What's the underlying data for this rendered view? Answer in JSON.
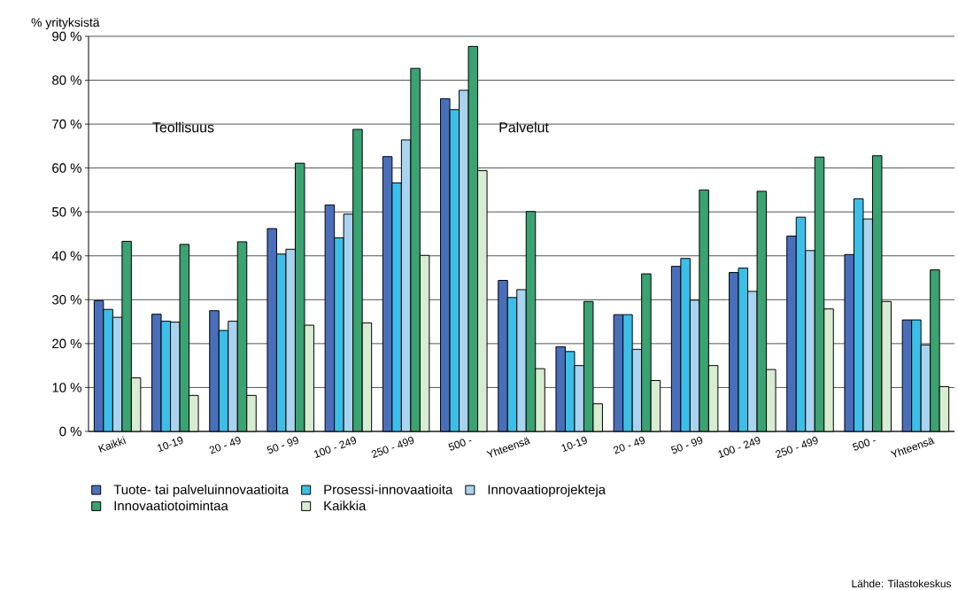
{
  "chart_data": {
    "type": "bar",
    "ylabel": "% yrityksistä",
    "categories": [
      "Kaikki",
      "10-19",
      "20 - 49",
      "50 - 99",
      "100 - 249",
      "250 - 499",
      "500 -",
      "Yhteensä",
      "10-19",
      "20 - 49",
      "50 - 99",
      "100 - 249",
      "250 - 499",
      "500 -",
      "Yhteensä"
    ],
    "series": [
      {
        "name": "Tuote- tai palveluinnovaatioita",
        "color": "#4a6fba",
        "values": [
          29.8,
          26.7,
          27.5,
          46.2,
          51.6,
          62.6,
          75.8,
          34.4,
          19.3,
          26.6,
          37.6,
          36.2,
          44.5,
          40.3,
          25.4
        ]
      },
      {
        "name": "Prosessi-innovaatioita",
        "color": "#3bbfe8",
        "values": [
          27.8,
          25.1,
          23.0,
          40.4,
          44.1,
          56.6,
          73.3,
          30.5,
          18.2,
          26.6,
          39.4,
          37.2,
          48.8,
          53.0,
          25.4
        ]
      },
      {
        "name": "Innovaatioprojekteja",
        "color": "#a9d3ee",
        "values": [
          26.0,
          24.9,
          25.1,
          41.5,
          49.5,
          66.4,
          77.7,
          32.3,
          15.0,
          18.7,
          29.9,
          31.9,
          41.2,
          48.4,
          19.7
        ]
      },
      {
        "name": "Innovaatiotoimintaa",
        "color": "#3ba271",
        "values": [
          43.3,
          42.6,
          43.2,
          61.1,
          68.8,
          82.7,
          87.7,
          50.1,
          29.6,
          35.9,
          55.0,
          54.7,
          62.5,
          62.8,
          36.8
        ]
      },
      {
        "name": "Kaikkia",
        "color": "#d7ecd0",
        "values": [
          12.2,
          8.2,
          8.2,
          24.2,
          24.7,
          40.1,
          59.4,
          14.3,
          6.3,
          11.6,
          15.0,
          14.1,
          27.9,
          29.6,
          10.2
        ]
      }
    ],
    "ylim": [
      0,
      90
    ],
    "yticks": [
      {
        "value": 0,
        "label": "0 %"
      },
      {
        "value": 10,
        "label": "10 %"
      },
      {
        "value": 20,
        "label": "20 %"
      },
      {
        "value": 30,
        "label": "30 %"
      },
      {
        "value": 40,
        "label": "40 %"
      },
      {
        "value": 50,
        "label": "50 %"
      },
      {
        "value": 60,
        "label": "60 %"
      },
      {
        "value": 70,
        "label": "70 %"
      },
      {
        "value": 80,
        "label": "80 %"
      },
      {
        "value": 90,
        "label": "90 %"
      }
    ],
    "grid": "y",
    "legend": "bottom",
    "annotations": [
      "Teollisuus",
      "Palvelut",
      "Lähde: Tilastokeskus"
    ]
  }
}
